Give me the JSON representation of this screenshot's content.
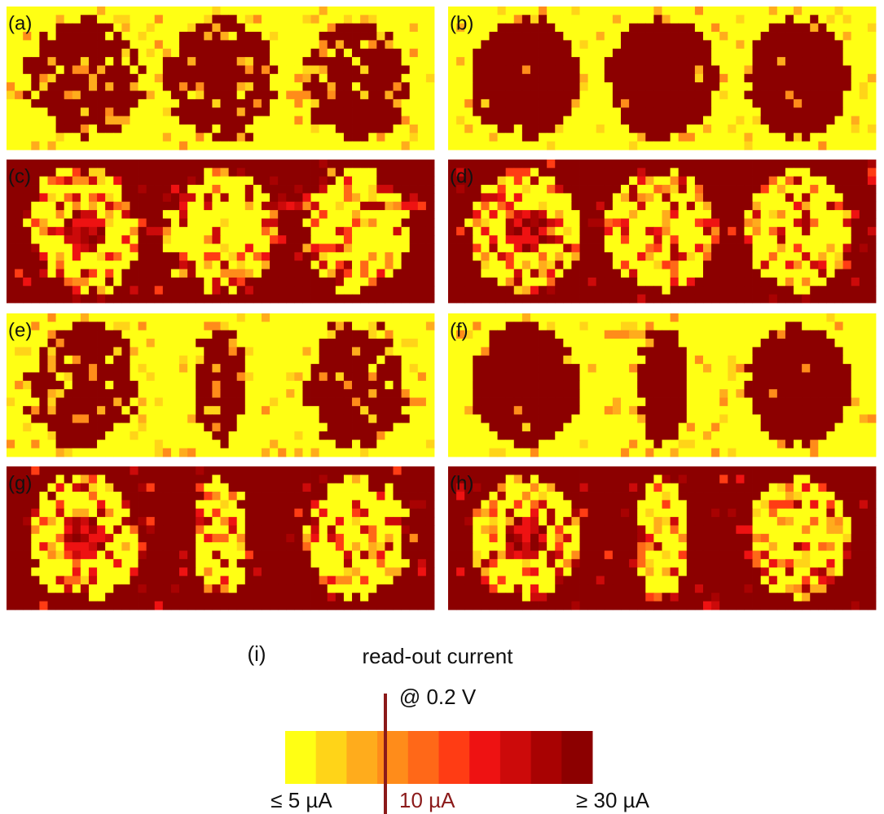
{
  "panels": [
    {
      "label": "(a)"
    },
    {
      "label": "(b)"
    },
    {
      "label": "(c)"
    },
    {
      "label": "(d)"
    },
    {
      "label": "(e)"
    },
    {
      "label": "(f)"
    },
    {
      "label": "(g)"
    },
    {
      "label": "(h)"
    }
  ],
  "colorbar": {
    "label": "(i)",
    "title": "read-out current",
    "subtitle": "@ 0.2 V",
    "colors": [
      "#ffff14",
      "#ffd418",
      "#ffac1c",
      "#ff8c1a",
      "#ff6818",
      "#ff3c14",
      "#ee1212",
      "#cc0a0a",
      "#a80202",
      "#8c0000"
    ],
    "min_label": "≤ 5 µA",
    "threshold_label": "10 µA",
    "max_label": "≥ 30 µA"
  }
}
